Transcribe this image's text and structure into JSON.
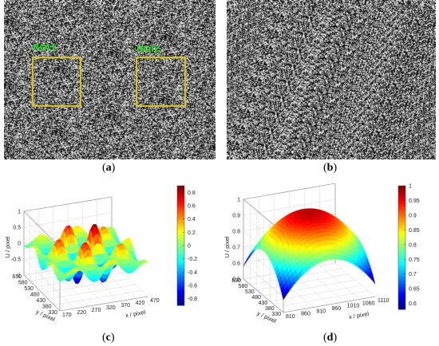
{
  "panels": {
    "a": {
      "caption_open": "(",
      "caption_letter": "a",
      "caption_close": ")",
      "roi_labels": [
        "ROI1",
        "ROI2"
      ]
    },
    "b": {
      "caption_open": "(",
      "caption_letter": "b",
      "caption_close": ")"
    },
    "c": {
      "caption_open": "(",
      "caption_letter": "c",
      "caption_close": ")"
    },
    "d": {
      "caption_open": "(",
      "caption_letter": "d",
      "caption_close": ")"
    }
  },
  "chart_data": [
    {
      "type": "surface",
      "panel": "c",
      "xlabel": "x / pixel",
      "ylabel": "y / pixel",
      "zlabel": "U / pixel",
      "x_ticks": [
        "170",
        "220",
        "270",
        "320",
        "370",
        "420",
        "470"
      ],
      "y_ticks": [
        "330",
        "380",
        "430",
        "480",
        "530",
        "580",
        "630"
      ],
      "z_ticks": [
        "-1",
        "-0.5",
        "0",
        "0.5",
        "1"
      ],
      "zlim": [
        -1,
        1
      ],
      "colorbar_ticks": [
        "0.8",
        "0.6",
        "0.4",
        "0.2",
        "0",
        "-0.2",
        "-0.4",
        "-0.6",
        "-0.8"
      ],
      "colorbar_range": [
        -0.9,
        0.9
      ],
      "colormap": "jet"
    },
    {
      "type": "surface",
      "panel": "d",
      "xlabel": "x / pixel",
      "ylabel": "y / pixel",
      "zlabel": "U / pixel",
      "x_ticks": [
        "810",
        "860",
        "910",
        "960",
        "1010",
        "1060",
        "1110"
      ],
      "y_ticks": [
        "330",
        "380",
        "430",
        "480",
        "530",
        "580",
        "630"
      ],
      "z_ticks": [
        "0.5",
        "0.6",
        "0.7",
        "0.8",
        "0.9",
        "1"
      ],
      "zlim": [
        0.5,
        1
      ],
      "colorbar_ticks": [
        "1",
        "0.95",
        "0.9",
        "0.85",
        "0.8",
        "0.75",
        "0.7",
        "0.65",
        "0.6"
      ],
      "colorbar_range": [
        0.58,
        1.0
      ],
      "colormap": "jet"
    }
  ],
  "colors": {
    "roi_border": "#d4c21a",
    "roi_label": "#1fd31f"
  }
}
